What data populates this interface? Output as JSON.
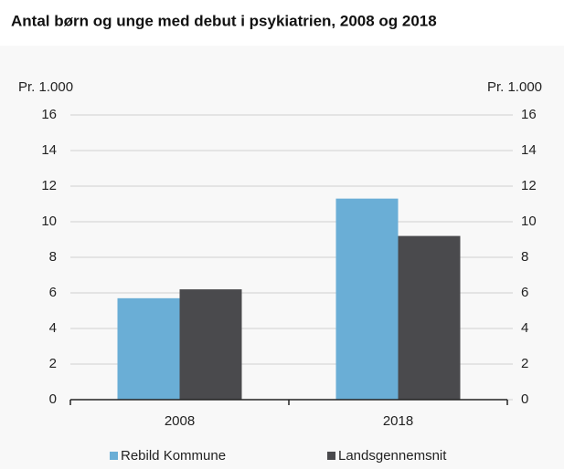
{
  "chart_data": {
    "type": "bar",
    "title": "Antal børn og unge med debut i psykiatrien, 2008 og 2018",
    "ylabel": "Pr. 1.000",
    "y2label": "Pr. 1.000",
    "categories": [
      "2008",
      "2018"
    ],
    "series": [
      {
        "name": "Rebild Kommune",
        "color": "#6aaed6",
        "values": [
          5.7,
          11.3
        ]
      },
      {
        "name": "Landsgennemsnit",
        "color": "#4a4a4d",
        "values": [
          6.2,
          9.2
        ]
      }
    ],
    "ylim": [
      0,
      16
    ],
    "yticks": [
      0,
      2,
      4,
      6,
      8,
      10,
      12,
      14,
      16
    ],
    "y2lim": [
      0,
      16
    ],
    "y2ticks": [
      0,
      2,
      4,
      6,
      8,
      10,
      12,
      14,
      16
    ],
    "grid": true,
    "legend": "bottom"
  }
}
